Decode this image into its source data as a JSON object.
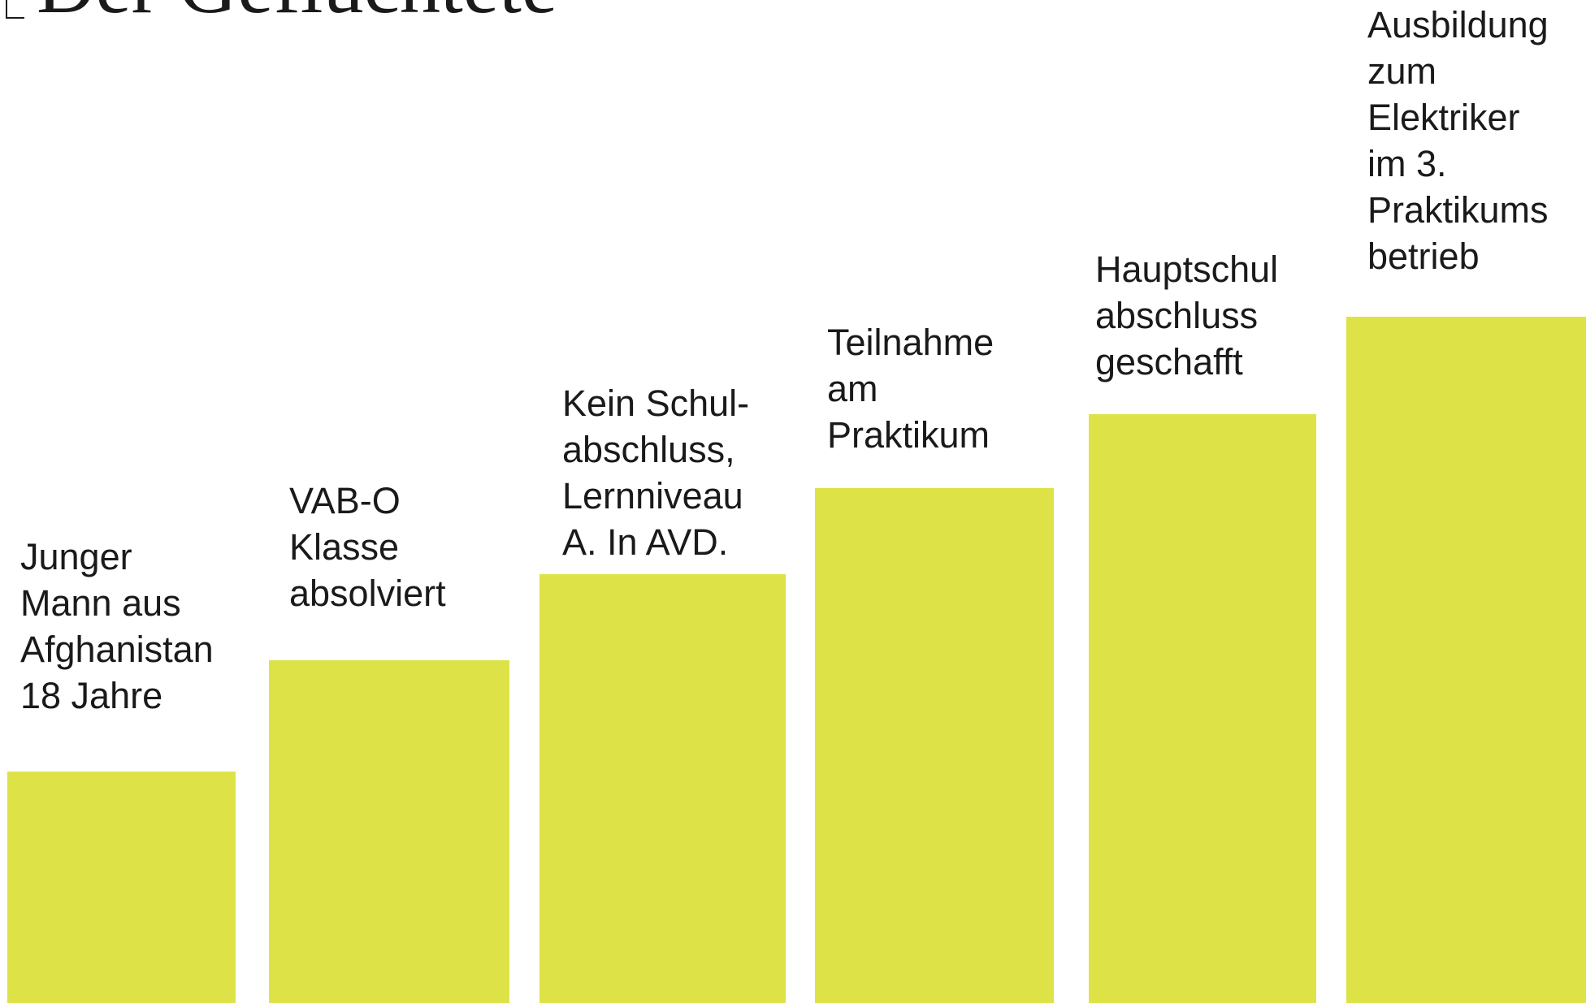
{
  "title": "Der Geflüchtete",
  "steps": [
    {
      "lines": [
        "Junger",
        "Mann aus",
        "Afghanistan",
        "18 Jahre"
      ]
    },
    {
      "lines": [
        "VAB-O",
        "Klasse",
        "absolviert"
      ]
    },
    {
      "lines": [
        "Kein Schul-",
        "abschluss,",
        "Lernniveau",
        "A. In AVD."
      ]
    },
    {
      "lines": [
        "Teilnahme",
        "am",
        "Praktikum"
      ]
    },
    {
      "lines": [
        "Hauptschul",
        "abschluss",
        "geschafft"
      ]
    },
    {
      "lines": [
        "Ausbildung",
        "zum",
        "Elektriker",
        "im 3.",
        "Praktikums",
        "betrieb"
      ]
    }
  ]
}
